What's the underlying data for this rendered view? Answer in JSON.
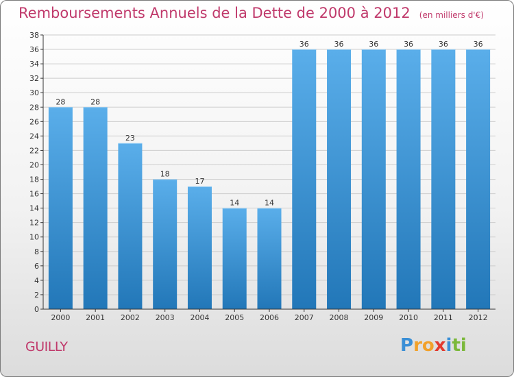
{
  "header": {
    "title": "Remboursements Annuels de la Dette de 2000 à 2012",
    "subtitle": "(en milliers d'€)"
  },
  "footer": {
    "commune": "GUILLY",
    "brand": "Proxiti",
    "brand_letters": [
      {
        "ch": "P",
        "color": "#3a8fd6"
      },
      {
        "ch": "r",
        "color": "#f2a12a"
      },
      {
        "ch": "o",
        "color": "#f2a12a"
      },
      {
        "ch": "x",
        "color": "#e23a2e"
      },
      {
        "ch": "i",
        "color": "#3a8fd6"
      },
      {
        "ch": "t",
        "color": "#7bb83a"
      },
      {
        "ch": "i",
        "color": "#7bb83a"
      }
    ]
  },
  "colors": {
    "title": "#c0396b",
    "bar_top": "#5aaeea",
    "bar_bottom": "#2277b8",
    "grid": "#cccccc",
    "axis": "#333333"
  },
  "chart_data": {
    "type": "bar",
    "categories": [
      "2000",
      "2001",
      "2002",
      "2003",
      "2004",
      "2005",
      "2006",
      "2007",
      "2008",
      "2009",
      "2010",
      "2011",
      "2012"
    ],
    "values": [
      28,
      28,
      23,
      18,
      17,
      14,
      14,
      36,
      36,
      36,
      36,
      36,
      36
    ],
    "title": "Remboursements Annuels de la Dette de 2000 à 2012",
    "subtitle": "(en milliers d'€)",
    "xlabel": "",
    "ylabel": "",
    "ylim": [
      0,
      38
    ],
    "ytick_step": 2,
    "grid": true,
    "data_labels": true
  }
}
